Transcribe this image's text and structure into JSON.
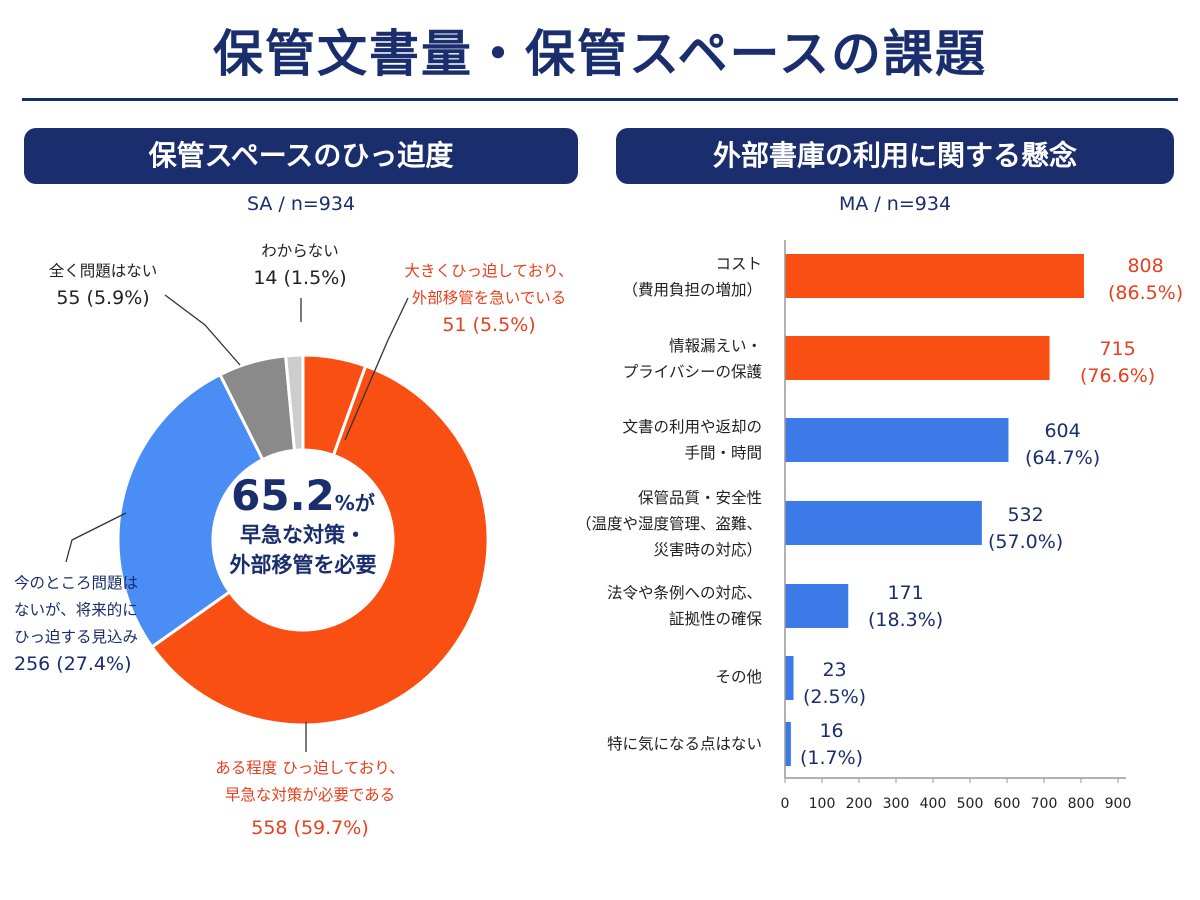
{
  "title": "保管文書量・保管スペースの課題",
  "left_panel": {
    "heading": "保管スペースのひっ迫度",
    "sample": "SA / n=934",
    "center": {
      "pct": "65.2",
      "pct_suffix": "%が",
      "line1": "早急な対策・",
      "line2": "外部移管を必要"
    }
  },
  "right_panel": {
    "heading": "外部書庫の利用に関する懸念",
    "sample": "MA / n=934"
  },
  "colors": {
    "navy": "#1a2e6e",
    "orange": "#fa4f12",
    "blue": "#4a8ef5",
    "gray": "#8a8a8a",
    "lightgray": "#cdcdcd",
    "barblue": "#3c7ae8"
  },
  "chart_data": [
    {
      "type": "pie",
      "title": "保管スペースのひっ迫度",
      "subtitle": "SA / n=934",
      "slices": [
        {
          "label_lines": [
            "大きくひっ迫しており、",
            "外部移管を急いでいる"
          ],
          "count": 51,
          "percent": 5.5,
          "value_text": "51 (5.5%)",
          "color": "#fa4f12"
        },
        {
          "label_lines": [
            "ある程度 ひっ迫しており、",
            "早急な対策が必要である"
          ],
          "count": 558,
          "percent": 59.7,
          "value_text": "558 (59.7%)",
          "color": "#fa4f12"
        },
        {
          "label_lines": [
            "今のところ問題は",
            "ないが、将来的に",
            "ひっ迫する見込み"
          ],
          "count": 256,
          "percent": 27.4,
          "value_text": "256 (27.4%)",
          "color": "#4a8ef5"
        },
        {
          "label_lines": [
            "全く問題はない"
          ],
          "count": 55,
          "percent": 5.9,
          "value_text": "55 (5.9%)",
          "color": "#8a8a8a"
        },
        {
          "label_lines": [
            "わからない"
          ],
          "count": 14,
          "percent": 1.5,
          "value_text": "14 (1.5%)",
          "color": "#cdcdcd"
        }
      ]
    },
    {
      "type": "bar",
      "orientation": "horizontal",
      "title": "外部書庫の利用に関する懸念",
      "subtitle": "MA / n=934",
      "xlim": [
        0,
        900
      ],
      "xticks": [
        "0",
        "100",
        "200",
        "300",
        "400",
        "500",
        "600",
        "700",
        "800",
        "900"
      ],
      "bars": [
        {
          "label_lines": [
            "コスト",
            "（費用負担の増加）"
          ],
          "value": 808,
          "value_text": "808",
          "pct_text": "(86.5%)",
          "color": "#fa4f12"
        },
        {
          "label_lines": [
            "情報漏えい・",
            "プライバシーの保護"
          ],
          "value": 715,
          "value_text": "715",
          "pct_text": "(76.6%)",
          "color": "#fa4f12"
        },
        {
          "label_lines": [
            "文書の利用や返却の",
            "手間・時間"
          ],
          "value": 604,
          "value_text": "604",
          "pct_text": "(64.7%)",
          "color": "#3c7ae8"
        },
        {
          "label_lines": [
            "保管品質・安全性",
            "（温度や湿度管理、盗難、",
            "災害時の対応）"
          ],
          "value": 532,
          "value_text": "532",
          "pct_text": "(57.0%)",
          "color": "#3c7ae8"
        },
        {
          "label_lines": [
            "法令や条例への対応、",
            "証拠性の確保"
          ],
          "value": 171,
          "value_text": "171",
          "pct_text": "(18.3%)",
          "color": "#3c7ae8"
        },
        {
          "label_lines": [
            "その他"
          ],
          "value": 23,
          "value_text": "23",
          "pct_text": "(2.5%)",
          "color": "#3c7ae8"
        },
        {
          "label_lines": [
            "特に気になる点はない"
          ],
          "value": 16,
          "value_text": "16",
          "pct_text": "(1.7%)",
          "color": "#3c7ae8"
        }
      ]
    }
  ]
}
